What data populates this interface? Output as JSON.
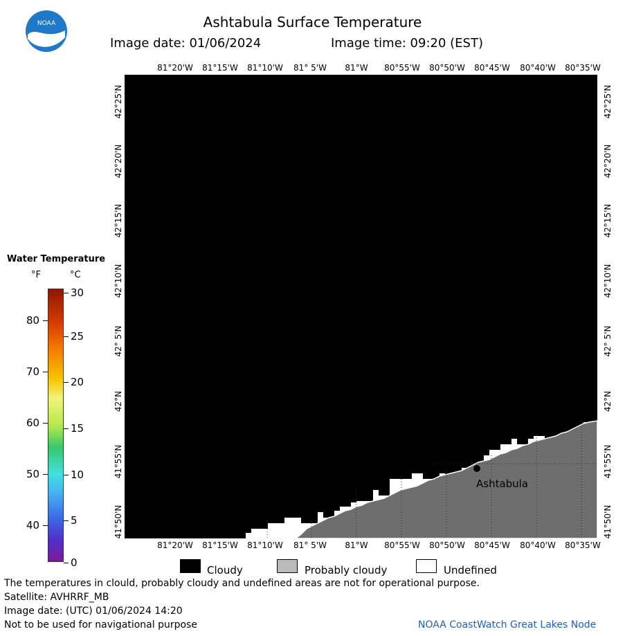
{
  "header": {
    "title": "Ashtabula Surface Temperature",
    "image_date_label": "Image date: 01/06/2024",
    "image_time_label": "Image time: 09:20 (EST)"
  },
  "map": {
    "lon_labels": [
      "81°20'W",
      "81°15'W",
      "81°10'W",
      "81° 5'W",
      "81°W",
      "80°55'W",
      "80°50'W",
      "80°45'W",
      "80°40'W",
      "80°35'W"
    ],
    "lat_labels": [
      "42°25'N",
      "42°20'N",
      "42°15'N",
      "42°10'N",
      "42° 5'N",
      "42°N",
      "41°55'N",
      "41°50'N"
    ],
    "place_label": "Ashtabula",
    "colors": {
      "cloudy": "#000000",
      "probably_cloudy": "#6e6e6e",
      "undefined": "#ffffff"
    }
  },
  "legend": {
    "title": "Water Temperature",
    "unit_f": "°F",
    "unit_c": "°C",
    "f_ticks": [
      "80",
      "70",
      "60",
      "50",
      "40"
    ],
    "c_ticks": [
      "30",
      "25",
      "20",
      "15",
      "10",
      "5",
      "0"
    ]
  },
  "key": {
    "cloudy": "Cloudy",
    "probably_cloudy": "Probably cloudy",
    "undefined": "Undefined"
  },
  "footer": {
    "line1": "The temperatures in clould, probably cloudy and undefined areas are not for operational purpose.",
    "line2": "Satellite: AVHRRF_MB",
    "line3": "Image date: (UTC) 01/06/2024  14:20",
    "line4": "Not to be used for navigational purpose",
    "credit": "NOAA CoastWatch Great Lakes Node"
  }
}
